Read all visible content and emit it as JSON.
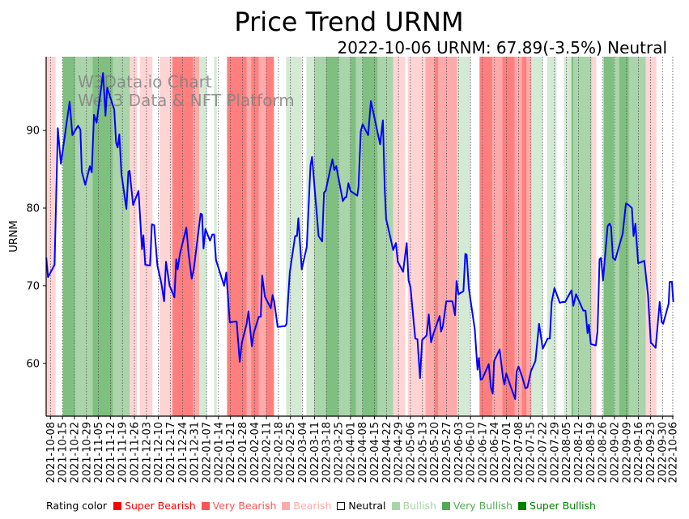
{
  "chart_data": {
    "type": "line",
    "title": "Price Trend URNM",
    "subtitle": "2022-10-06 URNM: 67.89(-3.5%) Neutral",
    "watermark": [
      "W3Data.io Chart",
      "Web3 Data & NFT Platform"
    ],
    "ylabel": "URNM",
    "xlabel": "",
    "x_units": "days since 2021-10-08",
    "xlim": [
      -2.5,
      363.5
    ],
    "ylim": [
      53.2,
      99.5
    ],
    "yticks": [
      60,
      70,
      80,
      90
    ],
    "grid": "vertical dotted at x ticks",
    "line_color": "#0000ff",
    "xtick_labels": [
      "2021-10-08",
      "2021-10-15",
      "2021-10-22",
      "2021-10-29",
      "2021-11-05",
      "2021-11-12",
      "2021-11-19",
      "2021-11-26",
      "2021-12-03",
      "2021-12-10",
      "2021-12-17",
      "2021-12-24",
      "2021-12-31",
      "2022-01-07",
      "2022-01-14",
      "2022-01-21",
      "2022-01-28",
      "2022-02-04",
      "2022-02-11",
      "2022-02-18",
      "2022-02-25",
      "2022-03-04",
      "2022-03-11",
      "2022-03-18",
      "2022-03-25",
      "2022-04-01",
      "2022-04-08",
      "2022-04-15",
      "2022-04-22",
      "2022-04-29",
      "2022-05-06",
      "2022-05-13",
      "2022-05-20",
      "2022-05-27",
      "2022-06-03",
      "2022-06-10",
      "2022-06-17",
      "2022-06-24",
      "2022-07-01",
      "2022-07-08",
      "2022-07-15",
      "2022-07-22",
      "2022-07-29",
      "2022-08-05",
      "2022-08-12",
      "2022-08-19",
      "2022-08-26",
      "2022-09-02",
      "2022-09-09",
      "2022-09-16",
      "2022-09-23",
      "2022-09-30",
      "2022-10-06"
    ],
    "xtick_days": [
      0,
      7,
      14,
      21,
      28,
      35,
      42,
      49,
      56,
      63,
      70,
      77,
      84,
      91,
      98,
      105,
      112,
      119,
      126,
      133,
      140,
      147,
      154,
      161,
      168,
      175,
      182,
      189,
      196,
      203,
      210,
      217,
      224,
      231,
      238,
      245,
      252,
      259,
      266,
      273,
      280,
      287,
      294,
      301,
      308,
      315,
      322,
      329,
      336,
      343,
      350,
      357,
      363
    ],
    "series": [
      {
        "name": "URNM",
        "points": [
          [
            -2.4,
            73.6
          ],
          [
            -1.4,
            71.1
          ],
          [
            2.4,
            72.7
          ],
          [
            4.3,
            90.3
          ],
          [
            6.1,
            85.7
          ],
          [
            11.2,
            93.7
          ],
          [
            12.8,
            89.4
          ],
          [
            16.1,
            90.6
          ],
          [
            17.5,
            90.1
          ],
          [
            18.3,
            84.7
          ],
          [
            20.3,
            83.0
          ],
          [
            23.0,
            85.4
          ],
          [
            24.1,
            84.6
          ],
          [
            25.4,
            92.0
          ],
          [
            26.9,
            91.0
          ],
          [
            30.7,
            97.4
          ],
          [
            32.1,
            91.9
          ],
          [
            33.1,
            95.5
          ],
          [
            37.2,
            92.7
          ],
          [
            38.3,
            88.4
          ],
          [
            39.2,
            87.8
          ],
          [
            40.2,
            89.5
          ],
          [
            41.4,
            84.4
          ],
          [
            44.3,
            79.9
          ],
          [
            45.5,
            84.7
          ],
          [
            46.2,
            84.8
          ],
          [
            48.2,
            80.4
          ],
          [
            51.4,
            82.2
          ],
          [
            53.4,
            74.7
          ],
          [
            54.2,
            76.5
          ],
          [
            55.3,
            72.7
          ],
          [
            58.1,
            72.6
          ],
          [
            59.2,
            77.9
          ],
          [
            60.5,
            77.8
          ],
          [
            62.4,
            72.6
          ],
          [
            64.7,
            70.3
          ],
          [
            66.3,
            68.0
          ],
          [
            67.4,
            73.1
          ],
          [
            69.5,
            70.0
          ],
          [
            72.3,
            68.5
          ],
          [
            73.4,
            73.4
          ],
          [
            74.2,
            72.1
          ],
          [
            75.5,
            74.1
          ],
          [
            79.3,
            77.5
          ],
          [
            80.5,
            74.3
          ],
          [
            82.4,
            70.9
          ],
          [
            83.6,
            72.1
          ],
          [
            87.6,
            79.3
          ],
          [
            88.4,
            79.2
          ],
          [
            89.3,
            74.8
          ],
          [
            90.4,
            77.3
          ],
          [
            93.1,
            75.8
          ],
          [
            94.4,
            76.6
          ],
          [
            95.5,
            76.6
          ],
          [
            96.6,
            73.3
          ],
          [
            101.3,
            70.0
          ],
          [
            102.6,
            71.7
          ],
          [
            104.6,
            65.3
          ],
          [
            108.6,
            65.4
          ],
          [
            110.4,
            60.2
          ],
          [
            111.7,
            62.7
          ],
          [
            114.4,
            65.0
          ],
          [
            115.5,
            66.7
          ],
          [
            117.5,
            62.2
          ],
          [
            118.6,
            63.9
          ],
          [
            121.5,
            66.0
          ],
          [
            122.7,
            66.0
          ],
          [
            123.5,
            71.3
          ],
          [
            125.1,
            68.6
          ],
          [
            128.5,
            67.1
          ],
          [
            129.6,
            68.8
          ],
          [
            130.6,
            67.9
          ],
          [
            132.5,
            64.7
          ],
          [
            136.9,
            64.8
          ],
          [
            137.7,
            65.1
          ],
          [
            139.6,
            71.7
          ],
          [
            142.7,
            76.4
          ],
          [
            143.8,
            76.4
          ],
          [
            144.6,
            78.7
          ],
          [
            146.6,
            72.1
          ],
          [
            149.5,
            75.0
          ],
          [
            151.7,
            85.5
          ],
          [
            152.6,
            86.6
          ],
          [
            156.4,
            76.4
          ],
          [
            158.5,
            75.7
          ],
          [
            159.6,
            82.0
          ],
          [
            160.5,
            82.2
          ],
          [
            164.5,
            86.3
          ],
          [
            165.6,
            84.9
          ],
          [
            166.7,
            85.4
          ],
          [
            170.6,
            80.9
          ],
          [
            171.9,
            81.4
          ],
          [
            172.6,
            81.4
          ],
          [
            173.8,
            83.2
          ],
          [
            175.0,
            82.2
          ],
          [
            179.0,
            81.6
          ],
          [
            179.7,
            82.8
          ],
          [
            181.0,
            89.9
          ],
          [
            182.1,
            90.8
          ],
          [
            185.3,
            89.4
          ],
          [
            186.9,
            93.8
          ],
          [
            192.3,
            88.2
          ],
          [
            193.9,
            91.3
          ],
          [
            195.0,
            82.5
          ],
          [
            195.8,
            78.6
          ],
          [
            198.3,
            76.2
          ],
          [
            199.9,
            74.6
          ],
          [
            201.5,
            75.5
          ],
          [
            202.6,
            73.1
          ],
          [
            205.7,
            71.8
          ],
          [
            207.8,
            75.5
          ],
          [
            208.9,
            70.7
          ],
          [
            210.0,
            69.8
          ],
          [
            212.8,
            63.2
          ],
          [
            214.1,
            63.1
          ],
          [
            215.6,
            58.1
          ],
          [
            216.8,
            63.0
          ],
          [
            219.4,
            63.6
          ],
          [
            220.7,
            66.3
          ],
          [
            222.0,
            62.7
          ],
          [
            223.5,
            63.9
          ],
          [
            227.0,
            66.1
          ],
          [
            227.8,
            64.1
          ],
          [
            228.9,
            64.8
          ],
          [
            230.9,
            68.0
          ],
          [
            234.5,
            68.0
          ],
          [
            236.0,
            66.2
          ],
          [
            236.9,
            70.6
          ],
          [
            238.0,
            68.9
          ],
          [
            240.9,
            69.3
          ],
          [
            242.0,
            74.1
          ],
          [
            242.8,
            74.0
          ],
          [
            244.0,
            69.7
          ],
          [
            247.5,
            64.4
          ],
          [
            249.1,
            59.2
          ],
          [
            249.9,
            60.7
          ],
          [
            250.9,
            57.9
          ],
          [
            251.9,
            58.0
          ],
          [
            255.7,
            59.9
          ],
          [
            256.9,
            56.9
          ],
          [
            258.0,
            56.1
          ],
          [
            258.8,
            60.3
          ],
          [
            262.0,
            61.8
          ],
          [
            264.0,
            58.1
          ],
          [
            264.8,
            57.3
          ],
          [
            265.9,
            58.7
          ],
          [
            268.8,
            56.8
          ],
          [
            271.1,
            55.4
          ],
          [
            271.9,
            58.9
          ],
          [
            273.0,
            59.6
          ],
          [
            275.1,
            58.3
          ],
          [
            277.1,
            56.8
          ],
          [
            278.2,
            56.9
          ],
          [
            280.3,
            59.0
          ],
          [
            282.9,
            60.3
          ],
          [
            285.0,
            65.1
          ],
          [
            287.2,
            61.9
          ],
          [
            290.0,
            63.2
          ],
          [
            291.3,
            63.2
          ],
          [
            292.4,
            67.9
          ],
          [
            294.0,
            69.7
          ],
          [
            297.1,
            67.8
          ],
          [
            298.7,
            67.9
          ],
          [
            300.2,
            67.9
          ],
          [
            303.9,
            69.4
          ],
          [
            305.0,
            67.4
          ],
          [
            306.6,
            68.9
          ],
          [
            310.8,
            66.8
          ],
          [
            312.1,
            66.8
          ],
          [
            313.3,
            63.9
          ],
          [
            314.1,
            65.0
          ],
          [
            315.2,
            62.5
          ],
          [
            318.1,
            62.3
          ],
          [
            319.1,
            64.1
          ],
          [
            320.3,
            73.4
          ],
          [
            321.2,
            73.6
          ],
          [
            322.3,
            70.7
          ],
          [
            325.0,
            77.7
          ],
          [
            326.2,
            78.0
          ],
          [
            327.0,
            77.6
          ],
          [
            328.1,
            73.6
          ],
          [
            329.4,
            73.3
          ],
          [
            333.8,
            76.7
          ],
          [
            335.7,
            80.6
          ],
          [
            337.3,
            80.4
          ],
          [
            339.2,
            80.0
          ],
          [
            340.1,
            76.4
          ],
          [
            341.2,
            78.0
          ],
          [
            342.8,
            72.9
          ],
          [
            346.4,
            73.2
          ],
          [
            348.6,
            68.8
          ],
          [
            350.2,
            62.7
          ],
          [
            353.0,
            62.0
          ],
          [
            355.4,
            67.9
          ],
          [
            356.6,
            65.3
          ],
          [
            357.4,
            65.1
          ],
          [
            360.6,
            67.7
          ],
          [
            361.2,
            70.5
          ],
          [
            362.5,
            70.5
          ],
          [
            363.3,
            67.89
          ]
        ]
      }
    ],
    "rating_bands": [
      [
        -2.7,
        3.0,
        "bearish"
      ],
      [
        7.2,
        14.3,
        "super_bullish"
      ],
      [
        14.3,
        24.6,
        "very_bullish"
      ],
      [
        24.6,
        36.4,
        "super_bullish"
      ],
      [
        36.4,
        46.3,
        "very_bullish"
      ],
      [
        46.3,
        50.6,
        "bearish"
      ],
      [
        52.1,
        59.5,
        "bearish"
      ],
      [
        63.7,
        70.7,
        "bearish"
      ],
      [
        71.0,
        83.2,
        "super_bearish"
      ],
      [
        83.2,
        86.8,
        "very_bearish"
      ],
      [
        86.8,
        91.2,
        "bullish"
      ],
      [
        95.5,
        97.0,
        "bullish"
      ],
      [
        103.0,
        114.4,
        "super_bearish"
      ],
      [
        114.4,
        117.1,
        "very_bearish"
      ],
      [
        117.1,
        121.5,
        "super_bearish"
      ],
      [
        121.5,
        125.8,
        "very_bearish"
      ],
      [
        125.8,
        130.4,
        "super_bearish"
      ],
      [
        137.5,
        146.6,
        "bullish"
      ],
      [
        149.3,
        153.7,
        "bullish"
      ],
      [
        153.7,
        160.8,
        "very_bullish"
      ],
      [
        160.8,
        167.9,
        "super_bullish"
      ],
      [
        167.9,
        175.0,
        "very_bullish"
      ],
      [
        175.0,
        178.2,
        "super_bullish"
      ],
      [
        178.2,
        182.1,
        "very_bullish"
      ],
      [
        182.1,
        190.8,
        "super_bullish"
      ],
      [
        190.8,
        199.9,
        "very_bullish"
      ],
      [
        199.9,
        207.0,
        "bearish"
      ],
      [
        208.4,
        218.8,
        "bearish"
      ],
      [
        218.8,
        224.2,
        "very_bearish"
      ],
      [
        224.2,
        226.2,
        "super_bearish"
      ],
      [
        226.2,
        237.2,
        "very_bearish"
      ],
      [
        237.2,
        245.1,
        "bullish"
      ],
      [
        250.3,
        257.7,
        "super_bearish"
      ],
      [
        257.7,
        263.6,
        "very_bearish"
      ],
      [
        263.6,
        270.8,
        "super_bearish"
      ],
      [
        270.8,
        275.0,
        "very_bearish"
      ],
      [
        275.0,
        277.7,
        "super_bearish"
      ],
      [
        277.7,
        280.6,
        "very_bearish"
      ],
      [
        280.6,
        287.2,
        "bullish"
      ],
      [
        289.7,
        295.2,
        "bullish"
      ],
      [
        299.5,
        303.9,
        "bullish"
      ],
      [
        303.9,
        305.0,
        "super_bullish"
      ],
      [
        305.0,
        315.6,
        "very_bullish"
      ],
      [
        315.6,
        318.4,
        "bearish"
      ],
      [
        322.6,
        328.6,
        "super_bullish"
      ],
      [
        328.6,
        331.8,
        "very_bullish"
      ],
      [
        331.8,
        337.3,
        "super_bullish"
      ],
      [
        337.3,
        347.2,
        "very_bullish"
      ],
      [
        347.2,
        353.5,
        "bearish"
      ]
    ],
    "legend": {
      "placement": "bottom",
      "title": "Rating color",
      "items": [
        {
          "key": "super_bearish",
          "label": "Super Bearish",
          "color": "#ff0000"
        },
        {
          "key": "very_bearish",
          "label": "Very Bearish",
          "color": "#ff5555"
        },
        {
          "key": "bearish",
          "label": "Bearish",
          "color": "#ffaaaa"
        },
        {
          "key": "neutral",
          "label": "Neutral",
          "color": "#ffffff"
        },
        {
          "key": "bullish",
          "label": "Bullish",
          "color": "#aad5aa"
        },
        {
          "key": "very_bullish",
          "label": "Very Bullish",
          "color": "#55aa55"
        },
        {
          "key": "super_bullish",
          "label": "Super Bullish",
          "color": "#008000"
        }
      ]
    }
  }
}
